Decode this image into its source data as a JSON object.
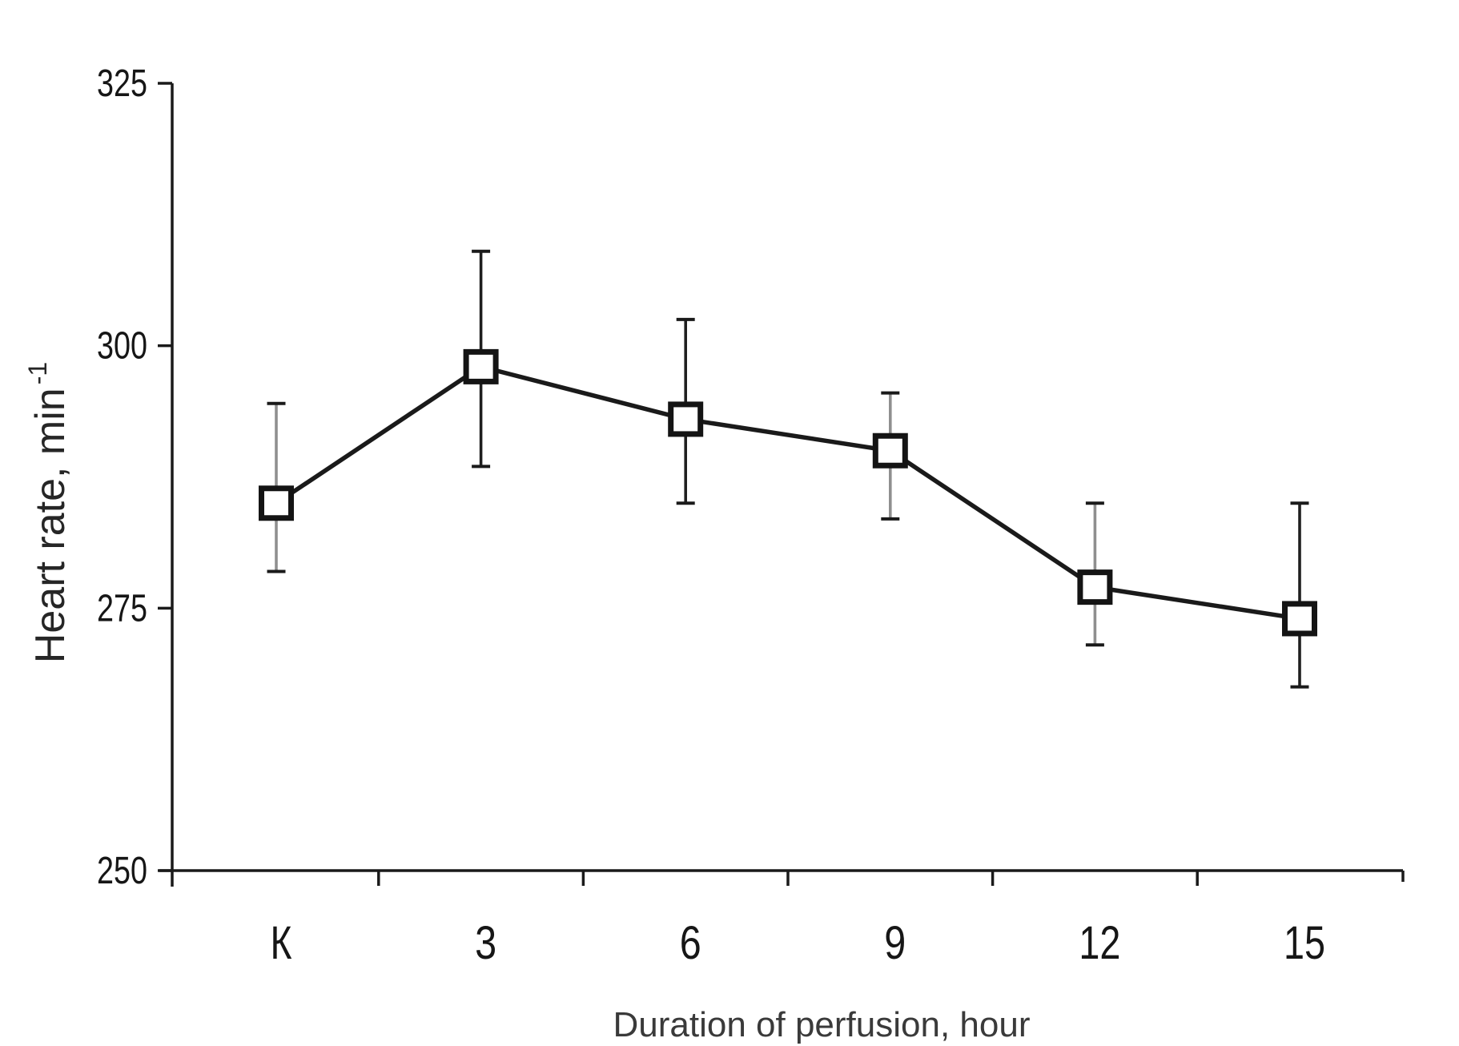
{
  "chart_data": {
    "type": "line",
    "title": "",
    "xlabel": "Duration of perfusion, hour",
    "ylabel": "Heart rate, min",
    "ylabel_exponent": "-1",
    "categories": [
      "К",
      "3",
      "6",
      "9",
      "12",
      "15"
    ],
    "series": [
      {
        "name": "heart-rate",
        "marker": "open-square",
        "values": [
          285,
          298,
          293,
          290,
          277,
          274
        ],
        "error_upper": [
          294.5,
          309,
          302.5,
          295.5,
          285,
          285
        ],
        "error_lower": [
          278.5,
          288.5,
          285,
          283.5,
          271.5,
          267.5
        ]
      }
    ],
    "ylim": [
      250,
      325
    ],
    "yticks": [
      250,
      275,
      300,
      325
    ],
    "grid": false,
    "legend": "none"
  },
  "style": {
    "background": "#ffffff",
    "line_color": "#1a1a1a",
    "marker_fill": "#ffffff",
    "marker_stroke": "#141414",
    "axis_color": "#1a1a1a",
    "tick_label_color": "#161616",
    "x_title_color": "#3a3a3a",
    "y_title_color": "#262626",
    "cap_color": "#1a1a1a",
    "whisker_colors": [
      "#8f8f8f",
      "#1f1f1f",
      "#1f1f1f",
      "#8f8f8f",
      "#8f8f8f",
      "#1f1f1f"
    ]
  }
}
